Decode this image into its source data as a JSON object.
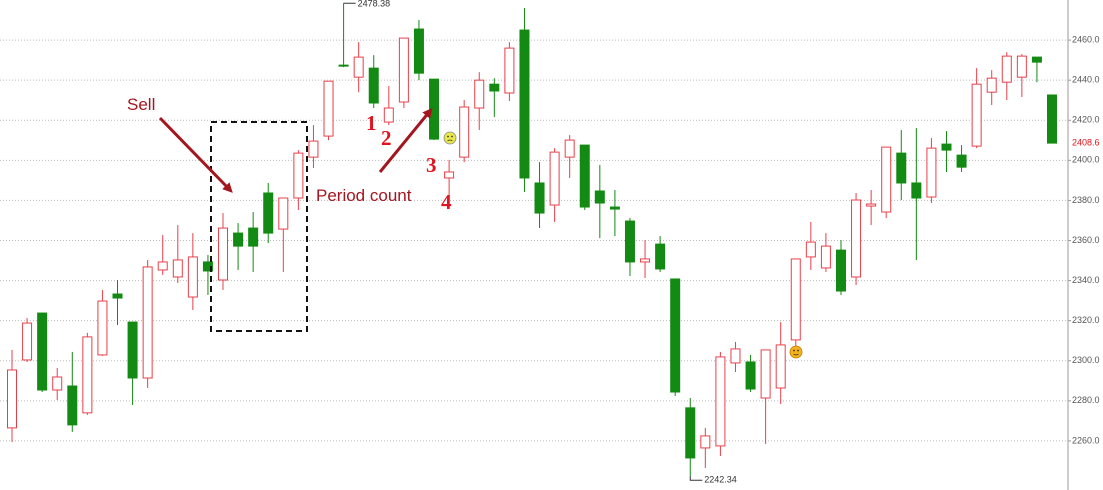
{
  "chart_data": {
    "type": "candlestick",
    "up_color": "#e8404a",
    "down_color": "#138a13",
    "ylim": [
      2240,
      2480
    ],
    "yticks": [
      {
        "value": 2260,
        "label": "2260.0"
      },
      {
        "value": 2280,
        "label": "2280.0"
      },
      {
        "value": 2300,
        "label": "2300.0"
      },
      {
        "value": 2320,
        "label": "2320.0"
      },
      {
        "value": 2340,
        "label": "2340.0"
      },
      {
        "value": 2360,
        "label": "2360.0"
      },
      {
        "value": 2380,
        "label": "2380.0"
      },
      {
        "value": 2400,
        "label": "2400.0"
      },
      {
        "value": 2420,
        "label": "2420.0"
      },
      {
        "value": 2440,
        "label": "2440.0"
      },
      {
        "value": 2460,
        "label": "2460.0"
      }
    ],
    "grid": true,
    "open": [
      2266.5,
      2300.4,
      2323.8,
      2285.4,
      2287.4,
      2274,
      2302.9,
      2333.3,
      2319.3,
      2291.4,
      2345.3,
      2341.8,
      2331.8,
      2349.3,
      2340.3,
      2363.7,
      2366.2,
      2383.7,
      2365.7,
      2381.2,
      2401.6,
      2412.1,
      2447.5,
      2441.5,
      2446,
      2419.1,
      2429.1,
      2465.5,
      2440.5,
      2391.2,
      2401.6,
      2426.1,
      2438,
      2433.6,
      2465,
      2388.7,
      2377.7,
      2401.6,
      2407.6,
      2384.7,
      2376.7,
      2369.7,
      2349.3,
      2358.2,
      2340.8,
      2276.5,
      2256.5,
      2257.5,
      2298.9,
      2299.4,
      2281.4,
      2286.4,
      2310.4,
      2351.8,
      2346.3,
      2355.2,
      2341.8,
      2377.2,
      2374.2,
      2403.6,
      2388.7,
      2381.7,
      2408.1,
      2402.6,
      2407.1,
      2434,
      2439,
      2441.5,
      2451.5,
      2432.6
    ],
    "high": [
      2305.4,
      2321.3,
      2323.8,
      2296.4,
      2304.4,
      2313.9,
      2335.3,
      2340.3,
      2319.3,
      2350.3,
      2362.7,
      2367.7,
      2363.7,
      2352.8,
      2373.7,
      2368.7,
      2374.2,
      2388.7,
      2381.2,
      2405.1,
      2417.6,
      2439.5,
      2478.38,
      2459,
      2452.5,
      2437.1,
      2461,
      2470,
      2440.5,
      2400.2,
      2430.1,
      2444,
      2441,
      2459,
      2476,
      2399.1,
      2406.1,
      2412.6,
      2407.6,
      2397.7,
      2385.2,
      2371.2,
      2360.2,
      2362.2,
      2340.8,
      2281.4,
      2266.5,
      2304.4,
      2309.4,
      2302.9,
      2305.4,
      2319.3,
      2350.8,
      2369.2,
      2363.7,
      2360.2,
      2383.7,
      2385.2,
      2406.6,
      2415.1,
      2416.1,
      2411.1,
      2414.6,
      2407.6,
      2446,
      2445,
      2454,
      2453,
      2451.5,
      2432.6
    ],
    "low": [
      2259.5,
      2299.4,
      2284.4,
      2280.4,
      2264.5,
      2273,
      2302.4,
      2317.8,
      2277.9,
      2286.4,
      2342.8,
      2338.8,
      2325.3,
      2332.8,
      2335.3,
      2345.3,
      2344.3,
      2358.7,
      2344.3,
      2375.2,
      2396.2,
      2410.1,
      2446.5,
      2434,
      2426.1,
      2417.6,
      2426.1,
      2440,
      2410.1,
      2380.2,
      2399.1,
      2415.1,
      2421.6,
      2429.6,
      2384.2,
      2366.2,
      2369.2,
      2391.2,
      2375.2,
      2361.2,
      2362.2,
      2342.3,
      2341.3,
      2344.3,
      2282.4,
      2242.34,
      2246.5,
      2252.5,
      2294.4,
      2284.4,
      2258.5,
      2278.4,
      2304.4,
      2345.3,
      2344.3,
      2332.8,
      2337.8,
      2367.7,
      2371.2,
      2380.2,
      2350.3,
      2378.7,
      2394.2,
      2394.2,
      2406.1,
      2427.6,
      2430.1,
      2431.6,
      2439,
      2408.6
    ],
    "close": [
      2295.4,
      2318.8,
      2285.4,
      2291.9,
      2268,
      2311.9,
      2329.8,
      2331.3,
      2291.4,
      2346.8,
      2349.3,
      2350.3,
      2351.8,
      2344.8,
      2366.2,
      2357.2,
      2357.2,
      2363.7,
      2381.2,
      2403.6,
      2409.6,
      2439.5,
      2447,
      2451.5,
      2428.6,
      2426.1,
      2461,
      2443.5,
      2410.6,
      2394.2,
      2426.6,
      2440,
      2434.6,
      2456,
      2391.2,
      2373.7,
      2404.1,
      2410.1,
      2376.7,
      2378.7,
      2375.7,
      2349.3,
      2350.8,
      2345.8,
      2284.4,
      2251.5,
      2262.5,
      2301.9,
      2305.9,
      2285.9,
      2305.4,
      2307.9,
      2350.8,
      2359.2,
      2357.2,
      2334.8,
      2380.2,
      2378.2,
      2406.6,
      2388.7,
      2381.2,
      2406.1,
      2405.1,
      2396.6,
      2438,
      2441,
      2452,
      2452,
      2449,
      2408.6
    ],
    "max_label": 2478.38,
    "min_label": 2242.34,
    "last_price": 2408.6,
    "annotations": [
      "Sell",
      "Period count",
      "1",
      "2",
      "3",
      "4"
    ]
  }
}
